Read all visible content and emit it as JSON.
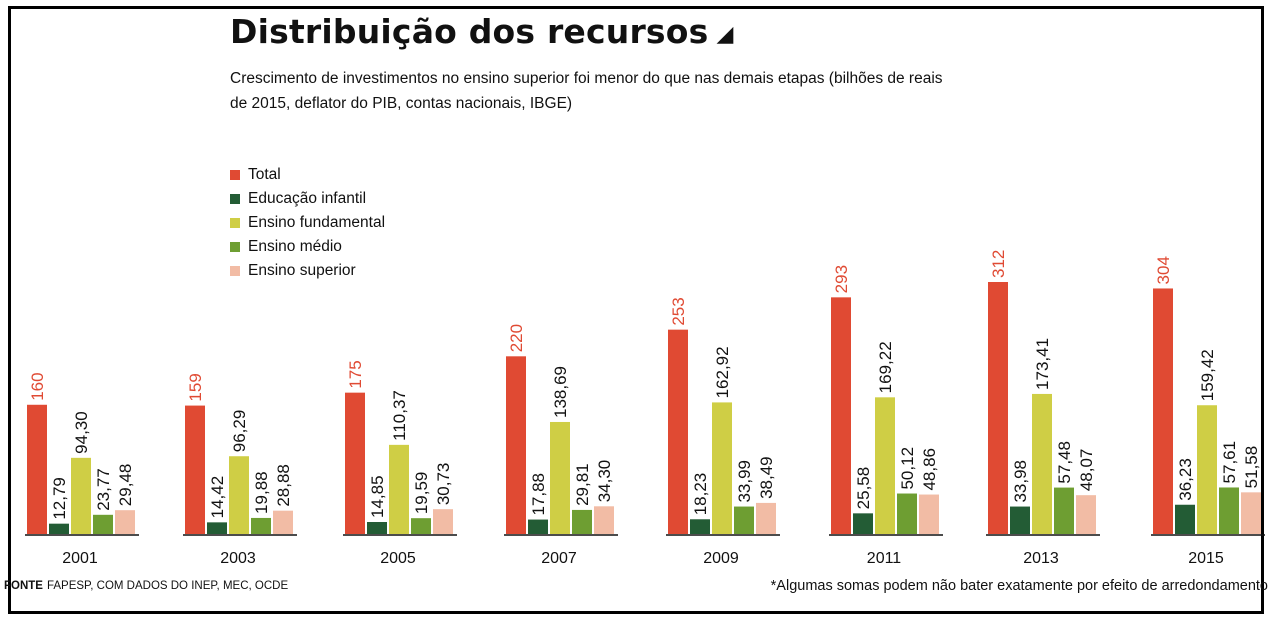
{
  "title": "Distribuição dos recursos",
  "title_icon": "triangle-icon",
  "subtitle": "Crescimento de investimentos no ensino superior foi menor do que nas demais etapas (bilhões de reais de 2015, deflator do PIB, contas nacionais, IBGE)",
  "source_label": "FONTE",
  "source_text": "FAPESP, COM DADOS DO INEP, MEC, OCDE",
  "note": "*Algumas somas podem não bater exatamente por efeito de arredondamento",
  "chart_data": {
    "type": "bar",
    "categories": [
      "2001",
      "2003",
      "2005",
      "2007",
      "2009",
      "2011",
      "2013",
      "2015"
    ],
    "series": [
      {
        "name": "Total",
        "color": "#e04a33",
        "values": [
          160,
          159,
          175,
          220,
          253,
          293,
          312,
          304
        ],
        "labels": [
          "160",
          "159",
          "175",
          "220",
          "253",
          "293",
          "312",
          "304"
        ]
      },
      {
        "name": "Educação infantil",
        "color": "#235c35",
        "values": [
          12.79,
          14.42,
          14.85,
          17.88,
          18.23,
          25.58,
          33.98,
          36.23
        ],
        "labels": [
          "12,79",
          "14,42",
          "14,85",
          "17,88",
          "18,23",
          "25,58",
          "33,98",
          "36,23"
        ]
      },
      {
        "name": "Ensino fundamental",
        "color": "#cfce45",
        "values": [
          94.3,
          96.29,
          110.37,
          138.69,
          162.92,
          169.22,
          173.41,
          159.42
        ],
        "labels": [
          "94,30",
          "96,29",
          "110,37",
          "138,69",
          "162,92",
          "169,22",
          "173,41",
          "159,42"
        ]
      },
      {
        "name": "Ensino médio",
        "color": "#6e9e32",
        "values": [
          23.77,
          19.88,
          19.59,
          29.81,
          33.99,
          50.12,
          57.48,
          57.61
        ],
        "labels": [
          "23,77",
          "19,88",
          "19,59",
          "29,81",
          "33,99",
          "50,12",
          "57,48",
          "57,61"
        ]
      },
      {
        "name": "Ensino superior",
        "color": "#f2bca5",
        "values": [
          29.48,
          28.88,
          30.73,
          34.3,
          38.49,
          48.86,
          48.07,
          51.58
        ],
        "labels": [
          "29,48",
          "28,88",
          "30,73",
          "34,30",
          "38,49",
          "48,86",
          "48,07",
          "51,58"
        ]
      }
    ],
    "label_colors": {
      "Total": "#e04a33",
      "other": "#111111"
    },
    "ylim": [
      0,
      312
    ],
    "legend_position": "top-left",
    "grid": false
  }
}
